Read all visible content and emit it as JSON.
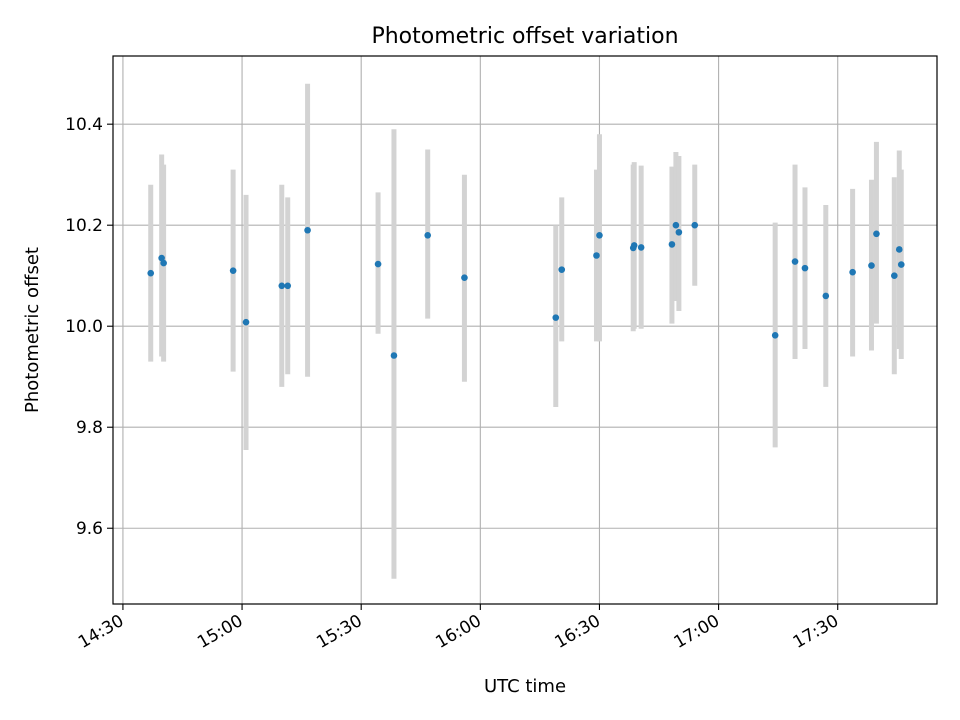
{
  "chart_data": {
    "type": "scatter",
    "title": "Photometric offset variation",
    "xlabel": "UTC time",
    "ylabel": "Photometric offset",
    "x_ticks": [
      "14:30",
      "15:00",
      "15:30",
      "16:00",
      "16:30",
      "17:00",
      "17:30"
    ],
    "y_ticks": [
      "9.6",
      "9.8",
      "10.0",
      "10.2",
      "10.4"
    ],
    "xlim": [
      "14:27:30",
      "17:55:00"
    ],
    "ylim": [
      9.45,
      10.535
    ],
    "grid": true,
    "colors": {
      "point": "#1f77b4",
      "errorbar": "#d3d3d3",
      "grid": "#b0b0b0"
    },
    "series": [
      {
        "points": [
          {
            "x": "14:37:00",
            "y": 10.105,
            "lo": 9.93,
            "hi": 10.28
          },
          {
            "x": "14:39:45",
            "y": 10.135,
            "lo": 9.94,
            "hi": 10.34
          },
          {
            "x": "14:40:15",
            "y": 10.125,
            "lo": 9.93,
            "hi": 10.32
          },
          {
            "x": "14:57:45",
            "y": 10.11,
            "lo": 9.91,
            "hi": 10.31
          },
          {
            "x": "15:01:00",
            "y": 10.008,
            "lo": 9.755,
            "hi": 10.26
          },
          {
            "x": "15:10:00",
            "y": 10.08,
            "lo": 9.88,
            "hi": 10.28
          },
          {
            "x": "15:11:30",
            "y": 10.08,
            "lo": 9.905,
            "hi": 10.255
          },
          {
            "x": "15:16:30",
            "y": 10.19,
            "lo": 9.9,
            "hi": 10.48
          },
          {
            "x": "15:34:15",
            "y": 10.123,
            "lo": 9.985,
            "hi": 10.265
          },
          {
            "x": "15:38:15",
            "y": 9.942,
            "lo": 9.5,
            "hi": 10.39
          },
          {
            "x": "15:46:45",
            "y": 10.18,
            "lo": 10.015,
            "hi": 10.35
          },
          {
            "x": "15:56:00",
            "y": 10.096,
            "lo": 9.89,
            "hi": 10.3
          },
          {
            "x": "16:19:00",
            "y": 10.017,
            "lo": 9.84,
            "hi": 10.2
          },
          {
            "x": "16:20:30",
            "y": 10.112,
            "lo": 9.97,
            "hi": 10.255
          },
          {
            "x": "16:29:15",
            "y": 10.14,
            "lo": 9.97,
            "hi": 10.31
          },
          {
            "x": "16:30:00",
            "y": 10.18,
            "lo": 9.97,
            "hi": 10.38
          },
          {
            "x": "16:38:30",
            "y": 10.155,
            "lo": 9.99,
            "hi": 10.32
          },
          {
            "x": "16:38:45",
            "y": 10.16,
            "lo": 9.995,
            "hi": 10.325
          },
          {
            "x": "16:40:30",
            "y": 10.156,
            "lo": 9.995,
            "hi": 10.318
          },
          {
            "x": "16:48:15",
            "y": 10.162,
            "lo": 10.005,
            "hi": 10.316
          },
          {
            "x": "16:49:15",
            "y": 10.2,
            "lo": 10.05,
            "hi": 10.345
          },
          {
            "x": "16:50:00",
            "y": 10.186,
            "lo": 10.03,
            "hi": 10.337
          },
          {
            "x": "16:54:00",
            "y": 10.2,
            "lo": 10.08,
            "hi": 10.32
          },
          {
            "x": "17:14:15",
            "y": 9.982,
            "lo": 9.76,
            "hi": 10.205
          },
          {
            "x": "17:19:15",
            "y": 10.128,
            "lo": 9.935,
            "hi": 10.32
          },
          {
            "x": "17:21:45",
            "y": 10.115,
            "lo": 9.955,
            "hi": 10.275
          },
          {
            "x": "17:27:00",
            "y": 10.06,
            "lo": 9.88,
            "hi": 10.24
          },
          {
            "x": "17:33:45",
            "y": 10.107,
            "lo": 9.94,
            "hi": 10.272
          },
          {
            "x": "17:38:30",
            "y": 10.12,
            "lo": 9.952,
            "hi": 10.29
          },
          {
            "x": "17:39:45",
            "y": 10.183,
            "lo": 10.005,
            "hi": 10.365
          },
          {
            "x": "17:44:15",
            "y": 10.1,
            "lo": 9.905,
            "hi": 10.295
          },
          {
            "x": "17:45:30",
            "y": 10.152,
            "lo": 9.955,
            "hi": 10.348
          },
          {
            "x": "17:46:00",
            "y": 10.122,
            "lo": 9.935,
            "hi": 10.31
          }
        ]
      }
    ]
  }
}
